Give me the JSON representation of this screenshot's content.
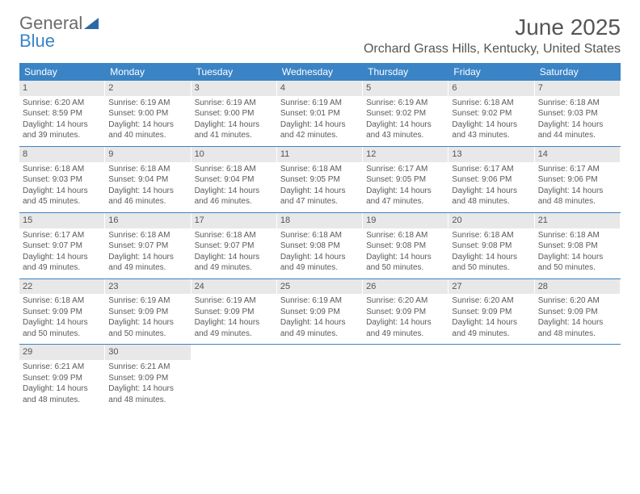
{
  "logo": {
    "part1": "General",
    "part2": "Blue"
  },
  "title": "June 2025",
  "location": "Orchard Grass Hills, Kentucky, United States",
  "colors": {
    "header_bg": "#3a84c6",
    "header_text": "#ffffff",
    "daynum_bg": "#e8e8e8",
    "text": "#5a5a5a",
    "border": "#3a84c6",
    "logo_gray": "#6b6b6b",
    "logo_blue": "#3a84c6"
  },
  "weekdays": [
    "Sunday",
    "Monday",
    "Tuesday",
    "Wednesday",
    "Thursday",
    "Friday",
    "Saturday"
  ],
  "weeks": [
    [
      {
        "day": "1",
        "sunrise": "Sunrise: 6:20 AM",
        "sunset": "Sunset: 8:59 PM",
        "dl1": "Daylight: 14 hours",
        "dl2": "and 39 minutes."
      },
      {
        "day": "2",
        "sunrise": "Sunrise: 6:19 AM",
        "sunset": "Sunset: 9:00 PM",
        "dl1": "Daylight: 14 hours",
        "dl2": "and 40 minutes."
      },
      {
        "day": "3",
        "sunrise": "Sunrise: 6:19 AM",
        "sunset": "Sunset: 9:00 PM",
        "dl1": "Daylight: 14 hours",
        "dl2": "and 41 minutes."
      },
      {
        "day": "4",
        "sunrise": "Sunrise: 6:19 AM",
        "sunset": "Sunset: 9:01 PM",
        "dl1": "Daylight: 14 hours",
        "dl2": "and 42 minutes."
      },
      {
        "day": "5",
        "sunrise": "Sunrise: 6:19 AM",
        "sunset": "Sunset: 9:02 PM",
        "dl1": "Daylight: 14 hours",
        "dl2": "and 43 minutes."
      },
      {
        "day": "6",
        "sunrise": "Sunrise: 6:18 AM",
        "sunset": "Sunset: 9:02 PM",
        "dl1": "Daylight: 14 hours",
        "dl2": "and 43 minutes."
      },
      {
        "day": "7",
        "sunrise": "Sunrise: 6:18 AM",
        "sunset": "Sunset: 9:03 PM",
        "dl1": "Daylight: 14 hours",
        "dl2": "and 44 minutes."
      }
    ],
    [
      {
        "day": "8",
        "sunrise": "Sunrise: 6:18 AM",
        "sunset": "Sunset: 9:03 PM",
        "dl1": "Daylight: 14 hours",
        "dl2": "and 45 minutes."
      },
      {
        "day": "9",
        "sunrise": "Sunrise: 6:18 AM",
        "sunset": "Sunset: 9:04 PM",
        "dl1": "Daylight: 14 hours",
        "dl2": "and 46 minutes."
      },
      {
        "day": "10",
        "sunrise": "Sunrise: 6:18 AM",
        "sunset": "Sunset: 9:04 PM",
        "dl1": "Daylight: 14 hours",
        "dl2": "and 46 minutes."
      },
      {
        "day": "11",
        "sunrise": "Sunrise: 6:18 AM",
        "sunset": "Sunset: 9:05 PM",
        "dl1": "Daylight: 14 hours",
        "dl2": "and 47 minutes."
      },
      {
        "day": "12",
        "sunrise": "Sunrise: 6:17 AM",
        "sunset": "Sunset: 9:05 PM",
        "dl1": "Daylight: 14 hours",
        "dl2": "and 47 minutes."
      },
      {
        "day": "13",
        "sunrise": "Sunrise: 6:17 AM",
        "sunset": "Sunset: 9:06 PM",
        "dl1": "Daylight: 14 hours",
        "dl2": "and 48 minutes."
      },
      {
        "day": "14",
        "sunrise": "Sunrise: 6:17 AM",
        "sunset": "Sunset: 9:06 PM",
        "dl1": "Daylight: 14 hours",
        "dl2": "and 48 minutes."
      }
    ],
    [
      {
        "day": "15",
        "sunrise": "Sunrise: 6:17 AM",
        "sunset": "Sunset: 9:07 PM",
        "dl1": "Daylight: 14 hours",
        "dl2": "and 49 minutes."
      },
      {
        "day": "16",
        "sunrise": "Sunrise: 6:18 AM",
        "sunset": "Sunset: 9:07 PM",
        "dl1": "Daylight: 14 hours",
        "dl2": "and 49 minutes."
      },
      {
        "day": "17",
        "sunrise": "Sunrise: 6:18 AM",
        "sunset": "Sunset: 9:07 PM",
        "dl1": "Daylight: 14 hours",
        "dl2": "and 49 minutes."
      },
      {
        "day": "18",
        "sunrise": "Sunrise: 6:18 AM",
        "sunset": "Sunset: 9:08 PM",
        "dl1": "Daylight: 14 hours",
        "dl2": "and 49 minutes."
      },
      {
        "day": "19",
        "sunrise": "Sunrise: 6:18 AM",
        "sunset": "Sunset: 9:08 PM",
        "dl1": "Daylight: 14 hours",
        "dl2": "and 50 minutes."
      },
      {
        "day": "20",
        "sunrise": "Sunrise: 6:18 AM",
        "sunset": "Sunset: 9:08 PM",
        "dl1": "Daylight: 14 hours",
        "dl2": "and 50 minutes."
      },
      {
        "day": "21",
        "sunrise": "Sunrise: 6:18 AM",
        "sunset": "Sunset: 9:08 PM",
        "dl1": "Daylight: 14 hours",
        "dl2": "and 50 minutes."
      }
    ],
    [
      {
        "day": "22",
        "sunrise": "Sunrise: 6:18 AM",
        "sunset": "Sunset: 9:09 PM",
        "dl1": "Daylight: 14 hours",
        "dl2": "and 50 minutes."
      },
      {
        "day": "23",
        "sunrise": "Sunrise: 6:19 AM",
        "sunset": "Sunset: 9:09 PM",
        "dl1": "Daylight: 14 hours",
        "dl2": "and 50 minutes."
      },
      {
        "day": "24",
        "sunrise": "Sunrise: 6:19 AM",
        "sunset": "Sunset: 9:09 PM",
        "dl1": "Daylight: 14 hours",
        "dl2": "and 49 minutes."
      },
      {
        "day": "25",
        "sunrise": "Sunrise: 6:19 AM",
        "sunset": "Sunset: 9:09 PM",
        "dl1": "Daylight: 14 hours",
        "dl2": "and 49 minutes."
      },
      {
        "day": "26",
        "sunrise": "Sunrise: 6:20 AM",
        "sunset": "Sunset: 9:09 PM",
        "dl1": "Daylight: 14 hours",
        "dl2": "and 49 minutes."
      },
      {
        "day": "27",
        "sunrise": "Sunrise: 6:20 AM",
        "sunset": "Sunset: 9:09 PM",
        "dl1": "Daylight: 14 hours",
        "dl2": "and 49 minutes."
      },
      {
        "day": "28",
        "sunrise": "Sunrise: 6:20 AM",
        "sunset": "Sunset: 9:09 PM",
        "dl1": "Daylight: 14 hours",
        "dl2": "and 48 minutes."
      }
    ],
    [
      {
        "day": "29",
        "sunrise": "Sunrise: 6:21 AM",
        "sunset": "Sunset: 9:09 PM",
        "dl1": "Daylight: 14 hours",
        "dl2": "and 48 minutes."
      },
      {
        "day": "30",
        "sunrise": "Sunrise: 6:21 AM",
        "sunset": "Sunset: 9:09 PM",
        "dl1": "Daylight: 14 hours",
        "dl2": "and 48 minutes."
      },
      {
        "empty": true
      },
      {
        "empty": true
      },
      {
        "empty": true
      },
      {
        "empty": true
      },
      {
        "empty": true
      }
    ]
  ]
}
